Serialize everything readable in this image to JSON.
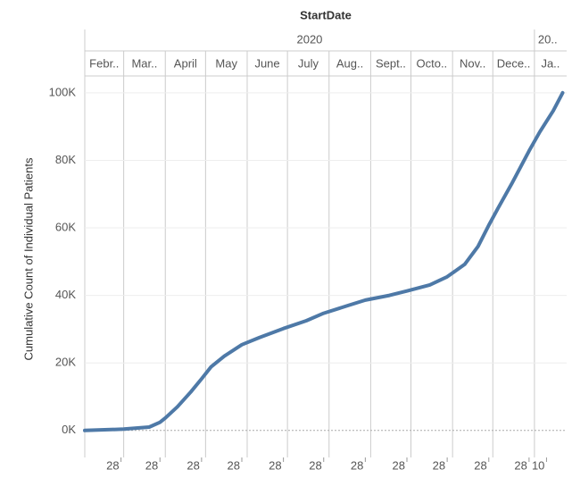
{
  "chart_data": {
    "type": "line",
    "x_title": "StartDate",
    "y_title": "Cumulative Count of Individual Patients",
    "year_labels": [
      "2020",
      "20.."
    ],
    "month_labels": [
      "Febr..",
      "Mar..",
      "April",
      "May",
      "June",
      "July",
      "Aug..",
      "Sept..",
      "Octo..",
      "Nov..",
      "Dece..",
      "Ja.."
    ],
    "x": [
      "2020-02-01",
      "2020-03-01",
      "2020-03-20",
      "2020-03-28",
      "2020-04-01",
      "2020-04-10",
      "2020-04-20",
      "2020-04-28",
      "2020-05-05",
      "2020-05-15",
      "2020-05-28",
      "2020-06-10",
      "2020-06-28",
      "2020-07-15",
      "2020-07-28",
      "2020-08-15",
      "2020-08-28",
      "2020-09-15",
      "2020-09-28",
      "2020-10-15",
      "2020-10-28",
      "2020-11-10",
      "2020-11-20",
      "2020-11-28",
      "2020-12-05",
      "2020-12-15",
      "2020-12-28",
      "2021-01-05",
      "2021-01-15",
      "2021-01-22"
    ],
    "series": [
      {
        "name": "Cumulative Count of Individual Patients",
        "color": "#4e79a7",
        "values": [
          0,
          400,
          1000,
          2400,
          3700,
          7000,
          11400,
          15300,
          18800,
          22000,
          25400,
          27500,
          30200,
          32500,
          34700,
          37000,
          38600,
          40000,
          41300,
          43100,
          45500,
          49200,
          54500,
          60800,
          65900,
          73000,
          82800,
          88400,
          94700,
          100000
        ]
      }
    ],
    "xlim": [
      "2020-02-01",
      "2021-01-25"
    ],
    "xticks": [
      {
        "value": "2020-02-28",
        "label": "28"
      },
      {
        "value": "2020-03-28",
        "label": "28"
      },
      {
        "value": "2020-04-28",
        "label": "28"
      },
      {
        "value": "2020-05-28",
        "label": "28"
      },
      {
        "value": "2020-06-28",
        "label": "28"
      },
      {
        "value": "2020-07-28",
        "label": "28"
      },
      {
        "value": "2020-08-28",
        "label": "28"
      },
      {
        "value": "2020-09-28",
        "label": "28"
      },
      {
        "value": "2020-10-28",
        "label": "28"
      },
      {
        "value": "2020-11-28",
        "label": "28"
      },
      {
        "value": "2020-12-28",
        "label": "28"
      },
      {
        "value": "2021-01-10",
        "label": "10"
      }
    ],
    "ylim": [
      -8000,
      105000
    ],
    "yticks": [
      {
        "value": 0,
        "label": "0K"
      },
      {
        "value": 20000,
        "label": "20K"
      },
      {
        "value": 40000,
        "label": "40K"
      },
      {
        "value": 60000,
        "label": "60K"
      },
      {
        "value": 80000,
        "label": "80K"
      },
      {
        "value": 100000,
        "label": "100K"
      }
    ],
    "grid": true
  }
}
